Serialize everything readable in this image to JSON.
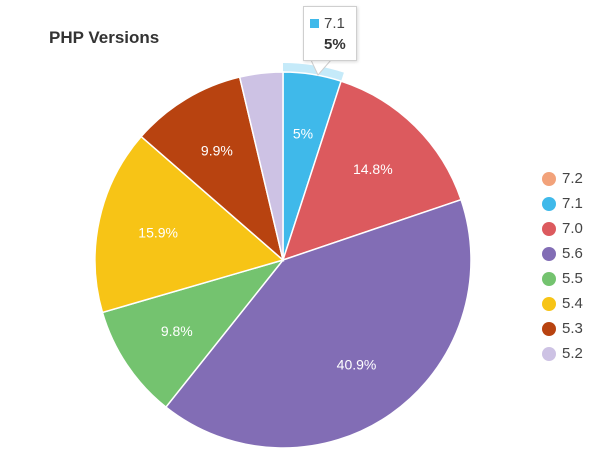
{
  "title": "PHP Versions",
  "tooltip": {
    "label": "7.1",
    "value": "5%",
    "color": "#3fb9ea"
  },
  "chart_data": {
    "type": "pie",
    "title": "PHP Versions",
    "categories": [
      "7.2",
      "7.1",
      "7.0",
      "5.6",
      "5.5",
      "5.4",
      "5.3",
      "5.2"
    ],
    "values": [
      0,
      5.0,
      14.8,
      40.9,
      9.8,
      15.9,
      9.9,
      3.7
    ],
    "labels": [
      "",
      "5%",
      "14.8%",
      "40.9%",
      "9.8%",
      "15.9%",
      "9.9%",
      ""
    ],
    "colors": [
      "#f2a27a",
      "#3fb9ea",
      "#dc5a5e",
      "#826db5",
      "#74c36f",
      "#f7c416",
      "#b84310",
      "#cdc2e4"
    ],
    "legend_position": "right",
    "highlighted": "7.1"
  },
  "legend": [
    {
      "label": "7.2",
      "color": "#f2a27a"
    },
    {
      "label": "7.1",
      "color": "#3fb9ea"
    },
    {
      "label": "7.0",
      "color": "#dc5a5e"
    },
    {
      "label": "5.6",
      "color": "#826db5"
    },
    {
      "label": "5.5",
      "color": "#74c36f"
    },
    {
      "label": "5.4",
      "color": "#f7c416"
    },
    {
      "label": "5.3",
      "color": "#b84310"
    },
    {
      "label": "5.2",
      "color": "#cdc2e4"
    }
  ]
}
